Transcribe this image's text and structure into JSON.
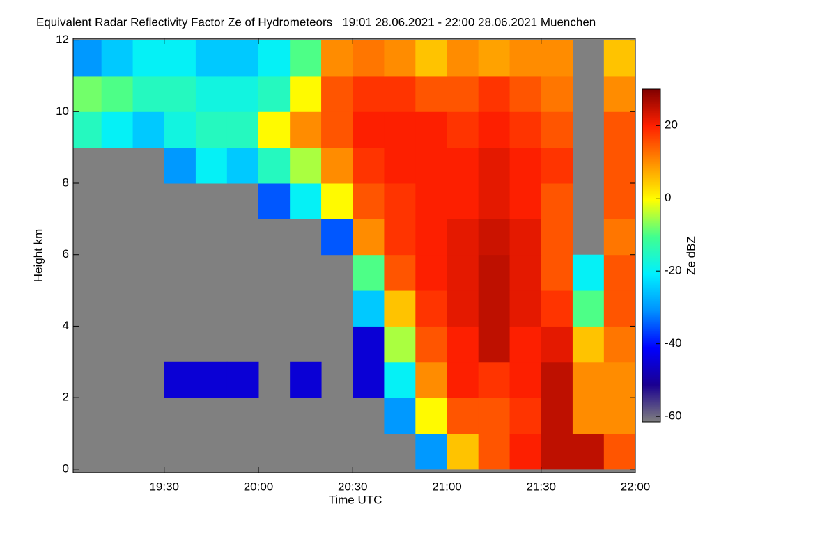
{
  "chart_data": {
    "type": "heatmap",
    "title": "Equivalent Radar Reflectivity Factor Ze of Hydrometeors   19:01 28.06.2021 - 22:00 28.06.2021 Muenchen",
    "xlabel": "Time UTC",
    "ylabel": "Height km",
    "colorbar_label": "Ze dBZ",
    "x": [
      19.0167,
      19.167,
      19.333,
      19.5,
      19.667,
      19.833,
      20,
      20.167,
      20.333,
      20.5,
      20.667,
      20.833,
      21,
      21.167,
      21.333,
      21.5,
      21.667,
      21.833,
      22
    ],
    "y": [
      0,
      1,
      2,
      3,
      4,
      5,
      6,
      7,
      8,
      9,
      10,
      11,
      12
    ],
    "z": [
      [
        null,
        null,
        null,
        null,
        null,
        null,
        null,
        null,
        null,
        null,
        null,
        -30,
        5,
        15,
        20,
        25,
        25,
        15
      ],
      [
        null,
        null,
        null,
        null,
        null,
        null,
        null,
        null,
        null,
        null,
        -30,
        0,
        15,
        15,
        18,
        25,
        10,
        10
      ],
      [
        null,
        null,
        null,
        -45,
        -45,
        -45,
        null,
        -45,
        null,
        -45,
        -20,
        10,
        20,
        18,
        20,
        25,
        10,
        10
      ],
      [
        null,
        null,
        null,
        null,
        null,
        null,
        null,
        null,
        null,
        -45,
        -5,
        15,
        20,
        25,
        20,
        22,
        5,
        12
      ],
      [
        null,
        null,
        null,
        null,
        null,
        null,
        null,
        null,
        null,
        -25,
        5,
        18,
        22,
        25,
        22,
        18,
        -10,
        15
      ],
      [
        null,
        null,
        null,
        null,
        null,
        null,
        null,
        null,
        null,
        -10,
        15,
        20,
        22,
        25,
        22,
        15,
        -20,
        15
      ],
      [
        null,
        null,
        null,
        null,
        null,
        null,
        null,
        null,
        -35,
        10,
        18,
        20,
        22,
        24,
        22,
        15,
        null,
        12
      ],
      [
        null,
        null,
        null,
        null,
        null,
        null,
        -35,
        -20,
        0,
        15,
        18,
        20,
        20,
        22,
        20,
        15,
        null,
        15
      ],
      [
        null,
        null,
        null,
        -30,
        -20,
        -25,
        -15,
        -5,
        10,
        18,
        20,
        20,
        20,
        22,
        20,
        18,
        null,
        15
      ],
      [
        -15,
        -20,
        -25,
        -18,
        -15,
        -15,
        0,
        10,
        15,
        20,
        20,
        20,
        18,
        20,
        18,
        15,
        null,
        15
      ],
      [
        -8,
        -10,
        -15,
        -15,
        -18,
        -18,
        -15,
        0,
        15,
        18,
        18,
        15,
        15,
        18,
        15,
        12,
        null,
        10
      ],
      [
        -30,
        -25,
        -20,
        -20,
        -25,
        -25,
        -20,
        -10,
        10,
        12,
        10,
        5,
        10,
        8,
        10,
        10,
        null,
        5
      ]
    ],
    "xlim": [
      19.0167,
      22
    ],
    "xticks": [
      {
        "value": 19.5,
        "label": "19:30"
      },
      {
        "value": 20,
        "label": "20:00"
      },
      {
        "value": 20.5,
        "label": "20:30"
      },
      {
        "value": 21,
        "label": "21:00"
      },
      {
        "value": 21.5,
        "label": "21:30"
      },
      {
        "value": 22,
        "label": "22:00"
      }
    ],
    "ylim": [
      -0.1,
      12.05
    ],
    "yticks": [
      0,
      2,
      4,
      6,
      8,
      10,
      12
    ],
    "clim": [
      -61.5,
      30
    ],
    "cticks": [
      -60,
      -40,
      -20,
      0,
      20
    ],
    "colormap": [
      "#7f7f7f",
      "#1a0090",
      "#0000ff",
      "#0090ff",
      "#00f0ff",
      "#40ff90",
      "#ffff00",
      "#ff9000",
      "#ff2000",
      "#800000"
    ],
    "missing_color": "#808080"
  }
}
